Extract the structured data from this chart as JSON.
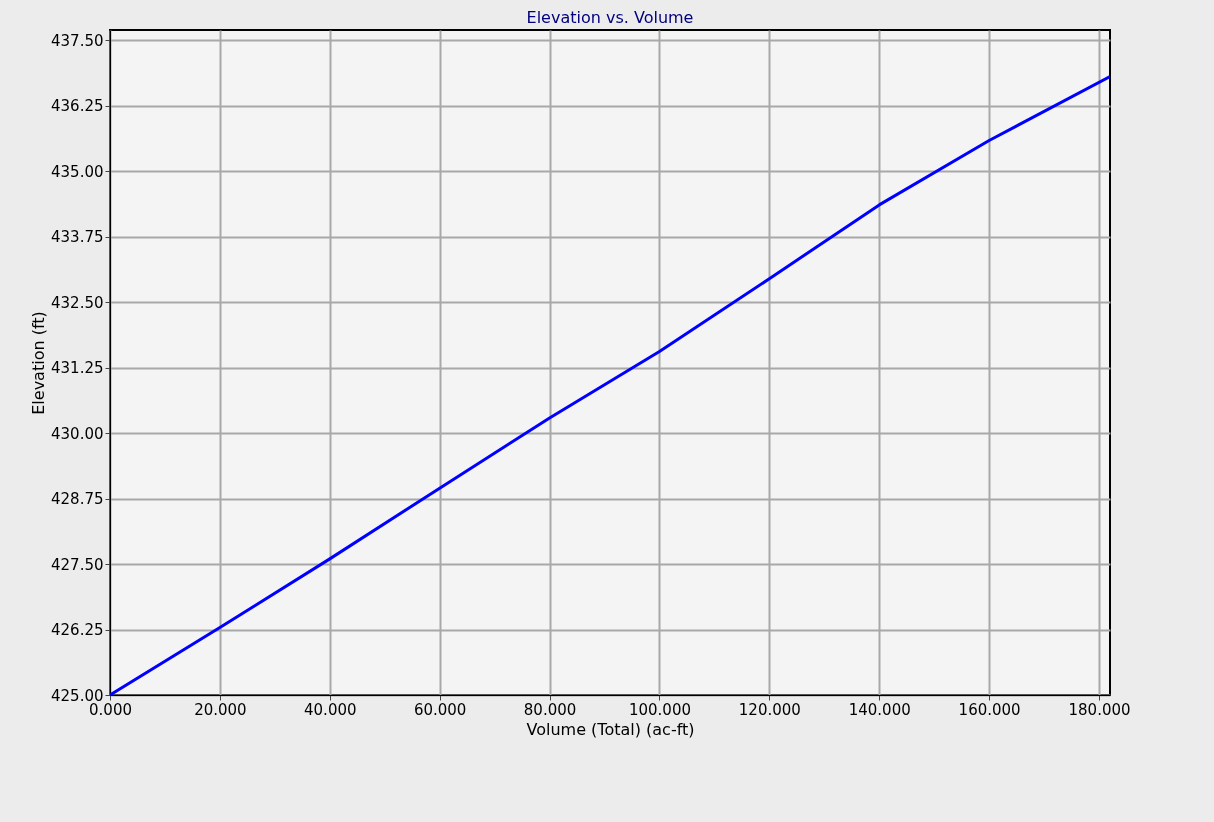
{
  "chart_data": {
    "type": "line",
    "title": "Elevation vs. Volume",
    "xlabel": "Volume (Total) (ac-ft)",
    "ylabel": "Elevation (ft)",
    "x": [
      0,
      20,
      40,
      60,
      80,
      100,
      120,
      140,
      160,
      182
    ],
    "series": [
      {
        "color": "#0000ff",
        "values": [
          425.0,
          426.29,
          427.6,
          428.95,
          430.29,
          431.56,
          432.95,
          434.36,
          435.59,
          436.81
        ]
      }
    ],
    "xlim": [
      0,
      182
    ],
    "xticks": [
      {
        "value": 0,
        "label": "0.000"
      },
      {
        "value": 20,
        "label": "20.000"
      },
      {
        "value": 40,
        "label": "40.000"
      },
      {
        "value": 60,
        "label": "60.000"
      },
      {
        "value": 80,
        "label": "80.000"
      },
      {
        "value": 100,
        "label": "100.000"
      },
      {
        "value": 120,
        "label": "120.000"
      },
      {
        "value": 140,
        "label": "140.000"
      },
      {
        "value": 160,
        "label": "160.000"
      },
      {
        "value": 180,
        "label": "180.000"
      }
    ],
    "ylim": [
      425,
      437.7
    ],
    "yticks": [
      {
        "value": 425,
        "label": "425.00"
      },
      {
        "value": 426.25,
        "label": "426.25"
      },
      {
        "value": 427.5,
        "label": "427.50"
      },
      {
        "value": 428.75,
        "label": "428.75"
      },
      {
        "value": 430,
        "label": "430.00"
      },
      {
        "value": 431.25,
        "label": "431.25"
      },
      {
        "value": 432.5,
        "label": "432.50"
      },
      {
        "value": 433.75,
        "label": "433.75"
      },
      {
        "value": 435,
        "label": "435.00"
      },
      {
        "value": 436.25,
        "label": "436.25"
      },
      {
        "value": 437.5,
        "label": "437.50"
      }
    ],
    "grid": true,
    "marker": "none",
    "line_style": "solid"
  }
}
